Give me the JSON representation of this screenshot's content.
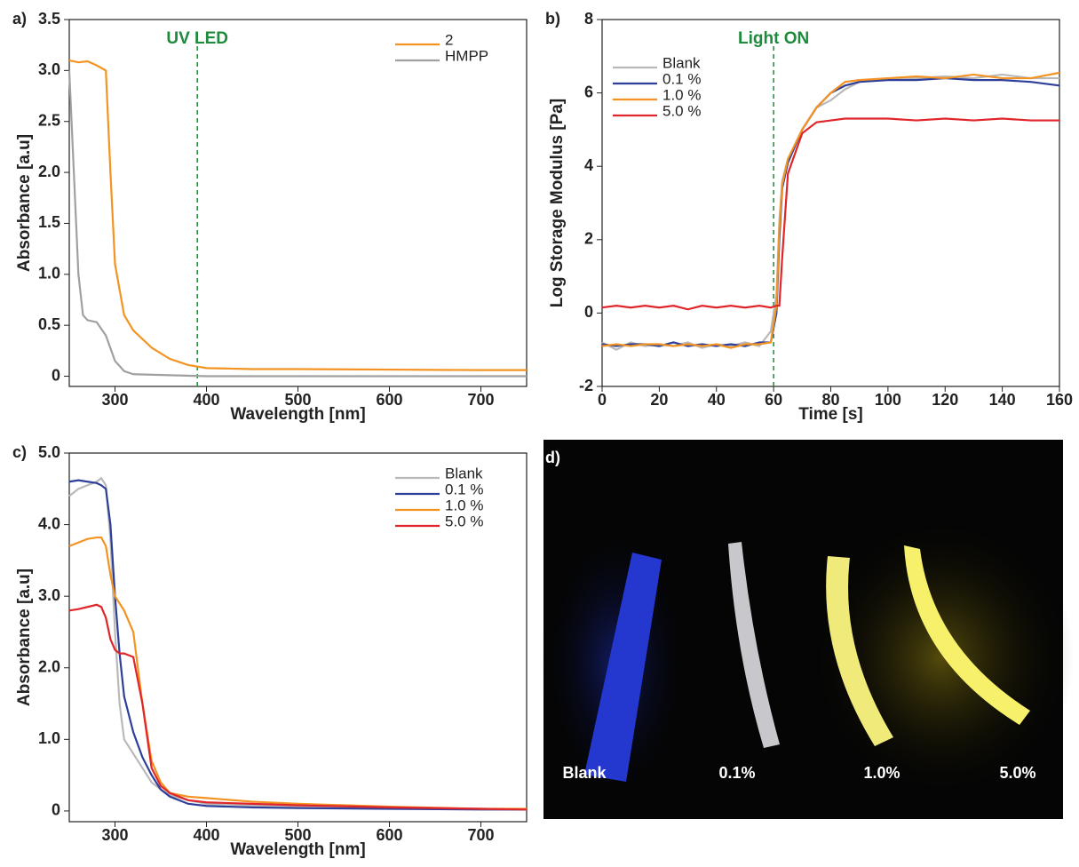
{
  "chart_data": [
    {
      "type": "line",
      "label": "a)",
      "xlabel": "Wavelength [nm]",
      "ylabel": "Absorbance [a.u]",
      "xlim": [
        250,
        750
      ],
      "ylim": [
        -0.1,
        3.5
      ],
      "xticks": [
        300,
        400,
        500,
        600,
        700
      ],
      "yticks": [
        0,
        0.5,
        {
          "value": 1,
          "label": "1.0"
        },
        1.5,
        {
          "value": 2,
          "label": "2.0"
        },
        2.5,
        {
          "value": 3,
          "label": "3.0"
        },
        3.5
      ],
      "legend": "upper right",
      "annotation": {
        "text": "UV LED",
        "x": 390,
        "color": "#1e8a3c"
      },
      "series": [
        {
          "name": "2",
          "color": "#f39322",
          "x": [
            250,
            260,
            270,
            280,
            290,
            295,
            300,
            310,
            320,
            340,
            360,
            380,
            400,
            450,
            500,
            600,
            700,
            750
          ],
          "values": [
            3.1,
            3.08,
            3.09,
            3.05,
            3.0,
            2.0,
            1.1,
            0.6,
            0.45,
            0.28,
            0.17,
            0.11,
            0.08,
            0.07,
            0.07,
            0.065,
            0.06,
            0.06
          ]
        },
        {
          "name": "HMPP",
          "color": "#a0a0a0",
          "x": [
            250,
            255,
            260,
            265,
            270,
            280,
            290,
            300,
            310,
            320,
            400,
            750
          ],
          "values": [
            3.0,
            2.0,
            1.0,
            0.6,
            0.55,
            0.53,
            0.4,
            0.15,
            0.05,
            0.02,
            0.0,
            0.0
          ]
        }
      ]
    },
    {
      "type": "line",
      "label": "b)",
      "xlabel": "Time [s]",
      "ylabel": "Log Storage Modulus [Pa]",
      "xlim": [
        0,
        160
      ],
      "ylim": [
        -2,
        8
      ],
      "xticks": [
        0,
        20,
        40,
        60,
        80,
        100,
        120,
        140,
        160
      ],
      "yticks": [
        -2,
        0,
        2,
        4,
        6,
        8
      ],
      "legend": "upper left",
      "annotation": {
        "text": "Light ON",
        "x": 60,
        "color": "#1e8a3c"
      },
      "x": [
        0,
        5,
        10,
        15,
        20,
        25,
        30,
        35,
        40,
        45,
        50,
        55,
        59,
        61,
        62,
        63,
        65,
        70,
        75,
        80,
        85,
        90,
        100,
        110,
        120,
        130,
        140,
        150,
        160
      ],
      "series": [
        {
          "name": "Blank",
          "color": "#b9b9b9",
          "values": [
            -0.8,
            -1.0,
            -0.8,
            -0.9,
            -0.85,
            -0.9,
            -0.8,
            -0.95,
            -0.85,
            -0.9,
            -0.8,
            -0.9,
            -0.5,
            0.5,
            2.5,
            3.6,
            4.2,
            5.0,
            5.6,
            5.8,
            6.1,
            6.3,
            6.4,
            6.4,
            6.45,
            6.4,
            6.5,
            6.4,
            6.4
          ]
        },
        {
          "name": "0.1 %",
          "color": "#2e3f9a",
          "values": [
            -0.85,
            -0.9,
            -0.85,
            -0.85,
            -0.9,
            -0.8,
            -0.9,
            -0.85,
            -0.9,
            -0.85,
            -0.9,
            -0.8,
            -0.8,
            0.0,
            2.0,
            3.4,
            4.1,
            5.0,
            5.6,
            6.0,
            6.2,
            6.3,
            6.35,
            6.35,
            6.4,
            6.35,
            6.35,
            6.3,
            6.2
          ]
        },
        {
          "name": "1.0 %",
          "color": "#f39322",
          "values": [
            -0.9,
            -0.85,
            -0.9,
            -0.85,
            -0.85,
            -0.9,
            -0.85,
            -0.9,
            -0.85,
            -0.95,
            -0.85,
            -0.85,
            -0.8,
            0.2,
            2.3,
            3.5,
            4.2,
            5.0,
            5.6,
            6.0,
            6.3,
            6.35,
            6.4,
            6.45,
            6.4,
            6.5,
            6.4,
            6.4,
            6.55
          ]
        },
        {
          "name": "5.0 %",
          "color": "#e0262a",
          "values": [
            0.15,
            0.2,
            0.15,
            0.2,
            0.15,
            0.2,
            0.1,
            0.2,
            0.15,
            0.2,
            0.15,
            0.2,
            0.15,
            0.2,
            0.2,
            1.5,
            3.8,
            4.9,
            5.2,
            5.25,
            5.3,
            5.3,
            5.3,
            5.25,
            5.3,
            5.25,
            5.3,
            5.25,
            5.25
          ]
        }
      ]
    },
    {
      "type": "line",
      "label": "c)",
      "xlabel": "Wavelength [nm]",
      "ylabel": "Absorbance [a.u]",
      "xlim": [
        250,
        750
      ],
      "ylim": [
        -0.15,
        5.0
      ],
      "xticks": [
        300,
        400,
        500,
        600,
        700
      ],
      "yticks": [
        0,
        {
          "value": 1,
          "label": "1.0"
        },
        {
          "value": 2,
          "label": "2.0"
        },
        {
          "value": 3,
          "label": "3.0"
        },
        {
          "value": 4,
          "label": "4.0"
        },
        {
          "value": 5,
          "label": "5.0"
        }
      ],
      "legend": "upper right",
      "x": [
        250,
        260,
        270,
        280,
        285,
        290,
        295,
        300,
        305,
        310,
        320,
        330,
        340,
        350,
        360,
        380,
        400,
        450,
        500,
        600,
        700,
        750
      ],
      "series": [
        {
          "name": "Blank",
          "color": "#b9b9b9",
          "values": [
            4.4,
            4.5,
            4.55,
            4.6,
            4.65,
            4.55,
            3.8,
            2.5,
            1.5,
            1.0,
            0.8,
            0.6,
            0.4,
            0.3,
            0.22,
            0.15,
            0.1,
            0.08,
            0.06,
            0.04,
            0.03,
            0.02
          ]
        },
        {
          "name": "0.1 %",
          "color": "#2e3f9a",
          "values": [
            4.6,
            4.62,
            4.6,
            4.58,
            4.55,
            4.5,
            4.0,
            3.0,
            2.2,
            1.6,
            1.1,
            0.75,
            0.5,
            0.3,
            0.2,
            0.1,
            0.07,
            0.05,
            0.04,
            0.03,
            0.02,
            0.02
          ]
        },
        {
          "name": "1.0 %",
          "color": "#f39322",
          "values": [
            3.7,
            3.75,
            3.8,
            3.82,
            3.82,
            3.7,
            3.3,
            3.0,
            2.9,
            2.8,
            2.5,
            1.5,
            0.7,
            0.4,
            0.25,
            0.2,
            0.18,
            0.13,
            0.1,
            0.06,
            0.03,
            0.03
          ]
        },
        {
          "name": "5.0 %",
          "color": "#e0262a",
          "values": [
            2.8,
            2.82,
            2.85,
            2.88,
            2.85,
            2.7,
            2.4,
            2.25,
            2.2,
            2.2,
            2.15,
            1.5,
            0.6,
            0.35,
            0.25,
            0.15,
            0.12,
            0.1,
            0.08,
            0.05,
            0.03,
            0.02
          ]
        }
      ]
    }
  ],
  "photo": {
    "label": "d)",
    "captions": [
      "Blank",
      "0.1%",
      "1.0%",
      "5.0%"
    ]
  }
}
